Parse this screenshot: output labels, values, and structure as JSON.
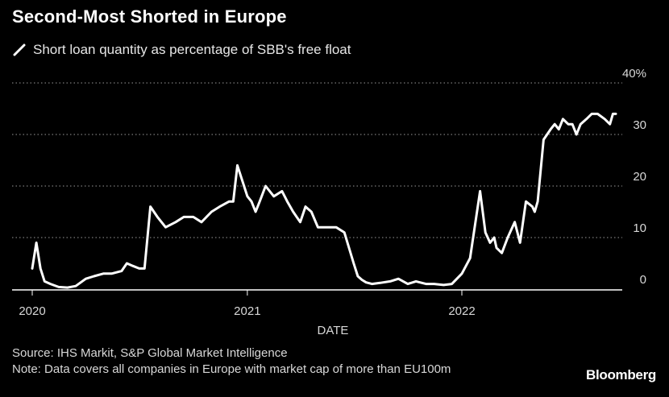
{
  "chart_data": {
    "type": "line",
    "title": "Second-Most Shorted in Europe",
    "legend": [
      {
        "name": "Short loan quantity as percentage of SBB's free float",
        "color": "#ffffff"
      }
    ],
    "xlabel": "DATE",
    "x_ticks": [
      "2020",
      "2021",
      "2022"
    ],
    "y_ticks": [
      "0",
      "10",
      "20",
      "30",
      "40%"
    ],
    "ylim": [
      0,
      40
    ],
    "xlim": [
      "2020-01-01",
      "2022-09-30"
    ],
    "grid": true,
    "series": [
      {
        "name": "Short loan quantity as percentage of SBB's free float",
        "x": [
          "2020-01-01",
          "2020-01-08",
          "2020-01-15",
          "2020-01-22",
          "2020-02-01",
          "2020-02-15",
          "2020-03-01",
          "2020-03-15",
          "2020-04-01",
          "2020-04-15",
          "2020-05-01",
          "2020-05-15",
          "2020-06-01",
          "2020-06-10",
          "2020-06-20",
          "2020-07-01",
          "2020-07-10",
          "2020-07-20",
          "2020-08-01",
          "2020-08-15",
          "2020-09-01",
          "2020-09-15",
          "2020-10-01",
          "2020-10-15",
          "2020-11-01",
          "2020-11-15",
          "2020-12-01",
          "2020-12-08",
          "2020-12-15",
          "2021-01-01",
          "2021-01-08",
          "2021-01-15",
          "2021-01-22",
          "2021-02-01",
          "2021-02-15",
          "2021-03-01",
          "2021-03-10",
          "2021-03-20",
          "2021-04-01",
          "2021-04-10",
          "2021-04-20",
          "2021-05-01",
          "2021-05-15",
          "2021-06-01",
          "2021-06-15",
          "2021-07-01",
          "2021-07-08",
          "2021-07-15",
          "2021-07-22",
          "2021-08-01",
          "2021-08-15",
          "2021-09-01",
          "2021-09-15",
          "2021-10-01",
          "2021-10-15",
          "2021-11-01",
          "2021-11-15",
          "2021-12-01",
          "2021-12-15",
          "2022-01-01",
          "2022-01-15",
          "2022-02-01",
          "2022-02-10",
          "2022-02-18",
          "2022-02-25",
          "2022-03-01",
          "2022-03-10",
          "2022-03-20",
          "2022-04-01",
          "2022-04-10",
          "2022-04-20",
          "2022-05-01",
          "2022-05-05",
          "2022-05-10",
          "2022-05-20",
          "2022-06-01",
          "2022-06-08",
          "2022-06-15",
          "2022-06-22",
          "2022-07-01",
          "2022-07-08",
          "2022-07-15",
          "2022-07-22",
          "2022-08-01",
          "2022-08-10",
          "2022-08-20",
          "2022-09-01",
          "2022-09-10",
          "2022-09-15",
          "2022-09-20"
        ],
        "y": [
          4,
          9,
          4,
          1.5,
          1,
          0.4,
          0.3,
          0.6,
          2,
          2.5,
          3,
          3,
          3.5,
          5,
          4.5,
          4,
          4,
          16,
          14,
          12,
          13,
          14,
          14,
          13,
          15,
          16,
          17,
          17,
          24,
          18,
          17,
          15,
          17,
          20,
          18,
          19,
          17,
          15,
          13,
          16,
          15,
          12,
          12,
          12,
          11,
          5,
          2.5,
          1.8,
          1.3,
          1,
          1.2,
          1.5,
          2,
          1,
          1.5,
          1,
          1,
          0.8,
          1,
          3,
          6,
          19,
          11,
          9,
          10,
          8,
          7,
          10,
          13,
          9,
          17,
          16,
          15,
          17,
          29,
          31,
          32,
          31,
          33,
          32,
          32,
          30,
          32,
          33,
          34,
          34,
          33,
          32,
          34,
          34
        ]
      }
    ]
  },
  "footer": {
    "source": "Source: IHS Markit, S&P Global Market Intelligence",
    "note": "Note: Data covers all companies in Europe with market cap of more than EU100m",
    "brand": "Bloomberg"
  }
}
